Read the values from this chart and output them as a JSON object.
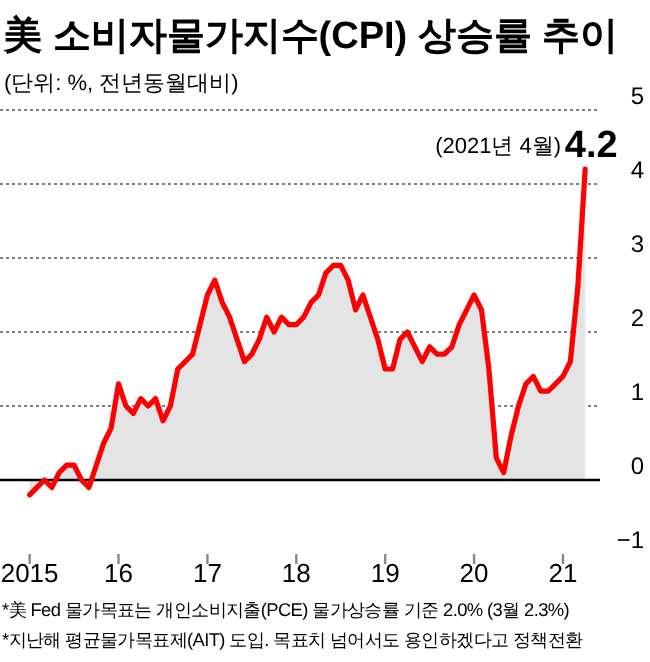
{
  "chart_data": {
    "type": "area",
    "title": "美 소비자물가지수(CPI) 상승률 추이",
    "subtitle": "(단위: %, 전년동월대비)",
    "x": [
      "2015-01",
      "2015-02",
      "2015-03",
      "2015-04",
      "2015-05",
      "2015-06",
      "2015-07",
      "2015-08",
      "2015-09",
      "2015-10",
      "2015-11",
      "2015-12",
      "2016-01",
      "2016-02",
      "2016-03",
      "2016-04",
      "2016-05",
      "2016-06",
      "2016-07",
      "2016-08",
      "2016-09",
      "2016-10",
      "2016-11",
      "2016-12",
      "2017-01",
      "2017-02",
      "2017-03",
      "2017-04",
      "2017-05",
      "2017-06",
      "2017-07",
      "2017-08",
      "2017-09",
      "2017-10",
      "2017-11",
      "2017-12",
      "2018-01",
      "2018-02",
      "2018-03",
      "2018-04",
      "2018-05",
      "2018-06",
      "2018-07",
      "2018-08",
      "2018-09",
      "2018-10",
      "2018-11",
      "2018-12",
      "2019-01",
      "2019-02",
      "2019-03",
      "2019-04",
      "2019-05",
      "2019-06",
      "2019-07",
      "2019-08",
      "2019-09",
      "2019-10",
      "2019-11",
      "2019-12",
      "2020-01",
      "2020-02",
      "2020-03",
      "2020-04",
      "2020-05",
      "2020-06",
      "2020-07",
      "2020-08",
      "2020-09",
      "2020-10",
      "2020-11",
      "2020-12",
      "2021-01",
      "2021-02",
      "2021-03",
      "2021-04"
    ],
    "series": [
      {
        "color": "#ff0000",
        "values": [
          -0.2,
          -0.1,
          0.0,
          -0.1,
          0.1,
          0.2,
          0.2,
          0.0,
          -0.1,
          0.2,
          0.5,
          0.7,
          1.3,
          1.0,
          0.9,
          1.1,
          1.0,
          1.1,
          0.8,
          1.0,
          1.5,
          1.6,
          1.7,
          2.1,
          2.5,
          2.7,
          2.4,
          2.2,
          1.9,
          1.6,
          1.7,
          1.9,
          2.2,
          2.0,
          2.2,
          2.1,
          2.1,
          2.2,
          2.4,
          2.5,
          2.8,
          2.9,
          2.9,
          2.7,
          2.3,
          2.5,
          2.2,
          1.9,
          1.5,
          1.5,
          1.9,
          2.0,
          1.8,
          1.6,
          1.8,
          1.7,
          1.7,
          1.8,
          2.1,
          2.3,
          2.5,
          2.3,
          1.5,
          0.3,
          0.1,
          0.6,
          1.0,
          1.3,
          1.4,
          1.2,
          1.2,
          1.3,
          1.4,
          1.6,
          2.6,
          4.2
        ],
        "value_labels": [
          null,
          null,
          null,
          null,
          null,
          null,
          null,
          null,
          null,
          null,
          null,
          null,
          null,
          null,
          null,
          null,
          null,
          null,
          null,
          null,
          null,
          null,
          null,
          null,
          null,
          null,
          null,
          null,
          null,
          null,
          null,
          null,
          null,
          null,
          null,
          null,
          null,
          null,
          null,
          null,
          null,
          null,
          null,
          null,
          null,
          null,
          null,
          null,
          null,
          null,
          null,
          null,
          null,
          null,
          null,
          null,
          null,
          null,
          null,
          null,
          null,
          null,
          null,
          null,
          null,
          null,
          null,
          null,
          null,
          null,
          null,
          null,
          null,
          null,
          null,
          "4.2"
        ]
      }
    ],
    "xlim": [
      "2014-09",
      "2021-06"
    ],
    "xticks": [
      {
        "value": "2015-01",
        "label": "2015"
      },
      {
        "value": "2016-01",
        "label": "16"
      },
      {
        "value": "2017-01",
        "label": "17"
      },
      {
        "value": "2018-01",
        "label": "18"
      },
      {
        "value": "2019-01",
        "label": "19"
      },
      {
        "value": "2020-01",
        "label": "20"
      },
      {
        "value": "2021-01",
        "label": "21"
      }
    ],
    "ylim": [
      -1,
      5
    ],
    "yticks": [
      {
        "value": -1,
        "label": "−1"
      },
      0,
      1,
      2,
      3,
      4,
      5
    ],
    "grid": "y",
    "ref_lines": [
      {
        "axis": "y",
        "value": 0,
        "color": "#000000"
      }
    ],
    "annotations": [
      {
        "text": "(2021년 4월)",
        "x": "2021-04",
        "y": 4.2
      },
      "*美 Fed 물가목표는 개인소비지출(PCE) 물가상승률 기준 2.0% (3월 2.3%)",
      "*지난해 평균물가목표제(AIT) 도입. 목표치 넘어서도 용인하겠다고 정책전환"
    ]
  }
}
